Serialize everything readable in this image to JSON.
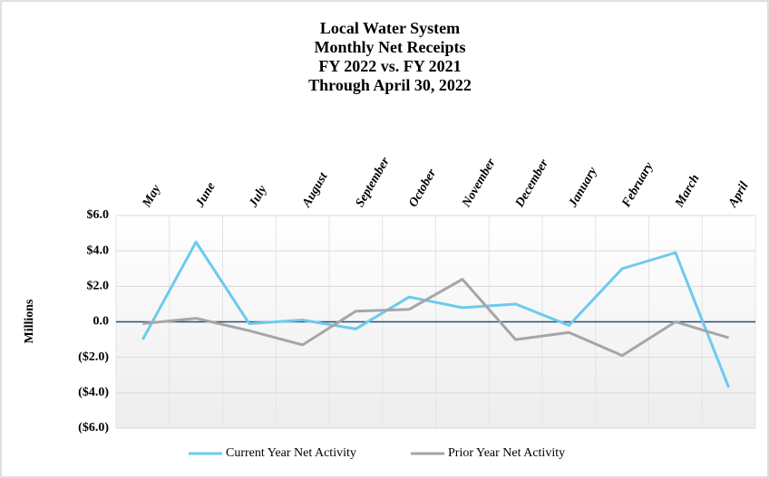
{
  "chart_data": {
    "type": "line",
    "title": [
      "Local Water System",
      "Monthly Net Receipts",
      "FY 2022 vs. FY 2021",
      "Through April 30, 2022"
    ],
    "y_label": "Millions",
    "categories": [
      "May",
      "June",
      "July",
      "August",
      "September",
      "October",
      "November",
      "December",
      "January",
      "February",
      "March",
      "April"
    ],
    "series": [
      {
        "name": "Current Year Net Activity",
        "color": "#6ccaf0",
        "values": [
          -1.0,
          4.5,
          -0.1,
          0.1,
          -0.4,
          1.4,
          0.8,
          1.0,
          -0.2,
          3.0,
          3.9,
          -3.7
        ]
      },
      {
        "name": "Prior Year Net Activity",
        "color": "#a6a6a6",
        "values": [
          -0.1,
          0.2,
          -0.5,
          -1.3,
          0.6,
          0.7,
          2.4,
          -1.0,
          -0.6,
          -1.9,
          0.0,
          -0.9
        ]
      }
    ],
    "ylim": [
      -6,
      6
    ],
    "yticks": [
      {
        "value": 6,
        "label": "$6.0"
      },
      {
        "value": 4,
        "label": "$4.0"
      },
      {
        "value": 2,
        "label": "$2.0"
      },
      {
        "value": 0,
        "label": "0.0"
      },
      {
        "value": -2,
        "label": "($2.0)"
      },
      {
        "value": -4,
        "label": "($4.0)"
      },
      {
        "value": -6,
        "label": "($6.0)"
      }
    ],
    "grid": true,
    "legend": "bottom"
  }
}
